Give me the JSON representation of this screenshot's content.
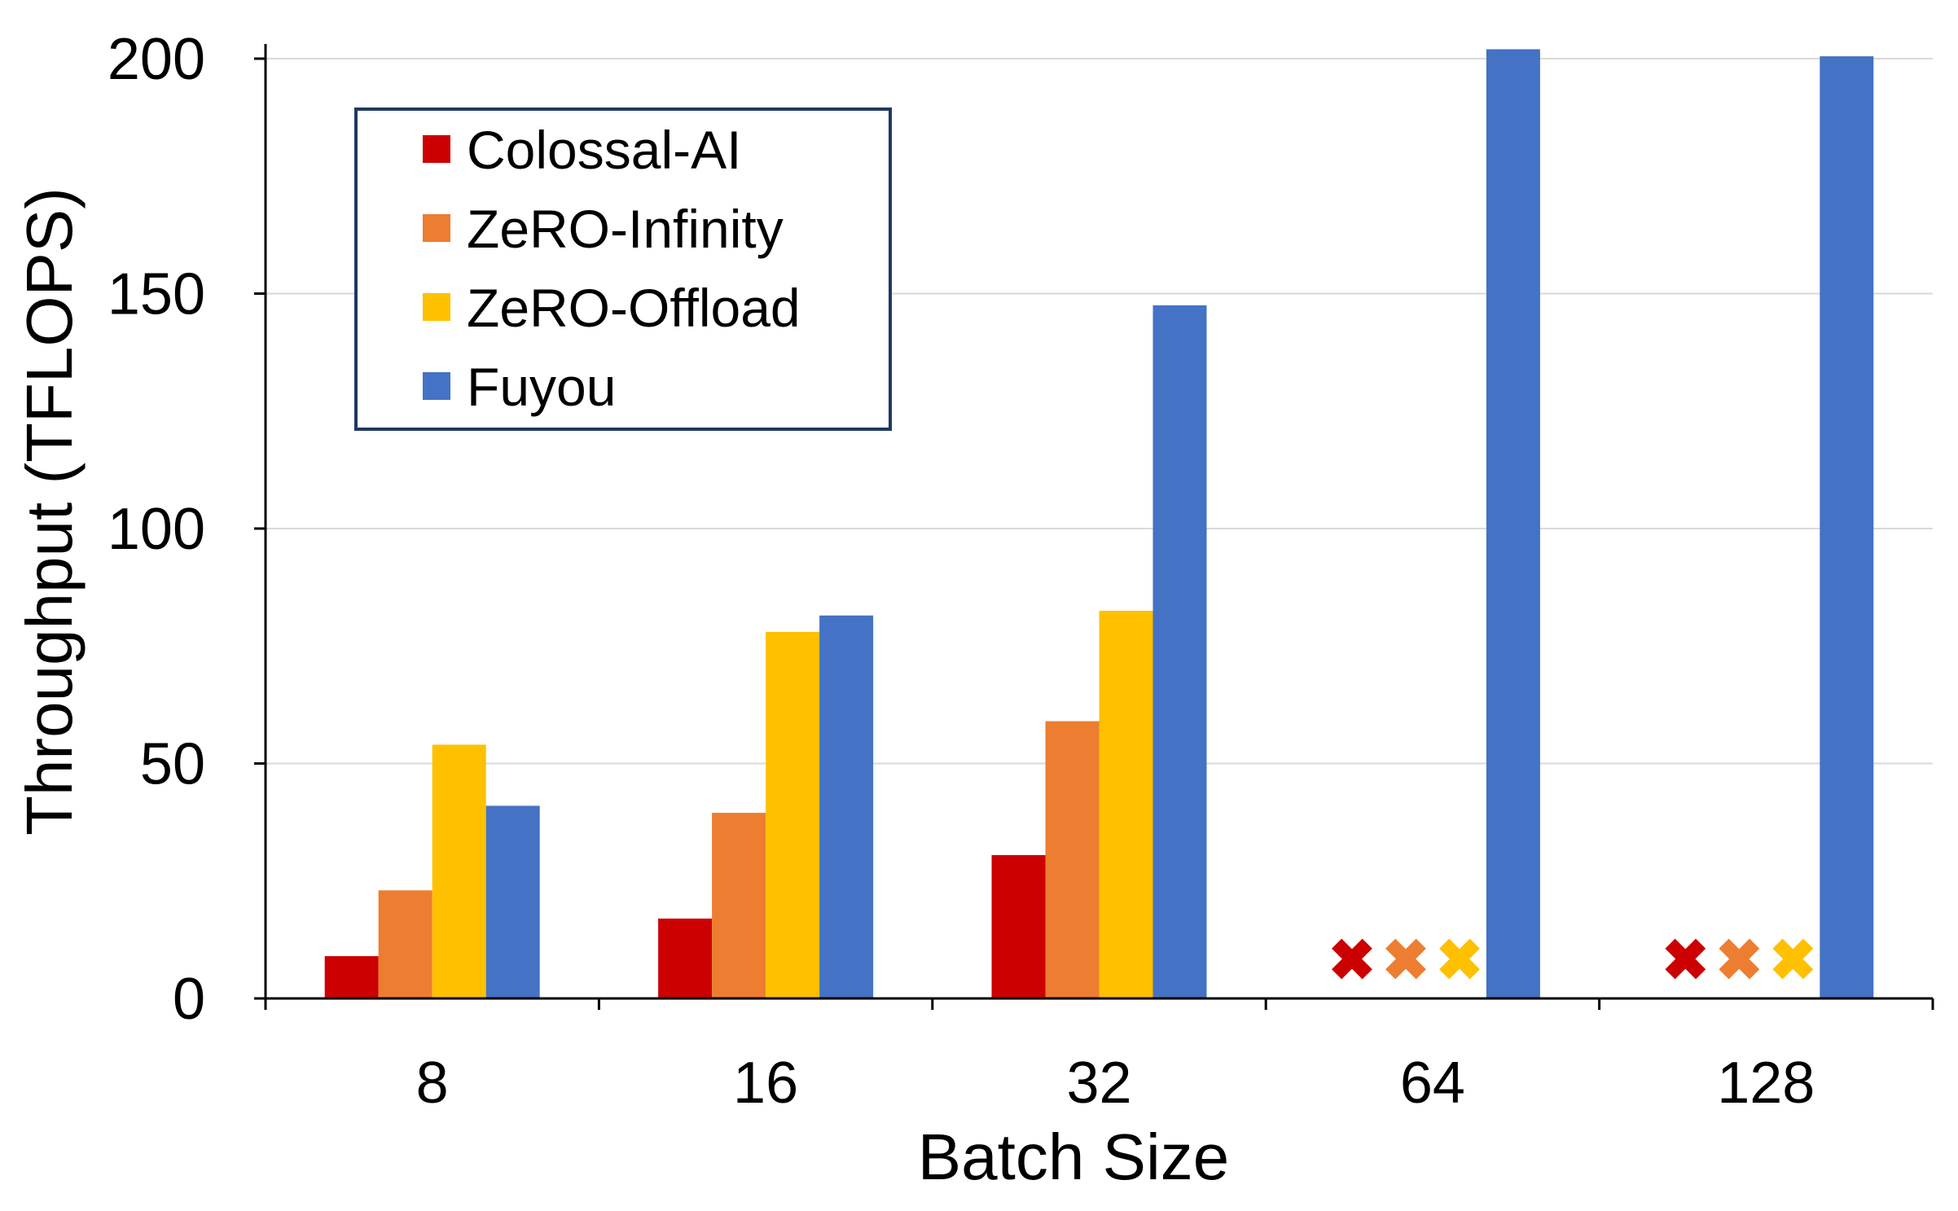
{
  "chart_data": {
    "type": "bar",
    "xlabel": "Batch Size",
    "ylabel": "Throughput (TFLOPS)",
    "categories": [
      "8",
      "16",
      "32",
      "64",
      "128"
    ],
    "ylim": [
      0,
      200
    ],
    "yticks": [
      "0",
      "50",
      "100",
      "150",
      "200"
    ],
    "grid": "horizontal",
    "legend_position": "top-left",
    "series": [
      {
        "name": "Colossal-AI",
        "color": "#CC0000",
        "values": [
          9,
          17,
          30.5,
          null,
          null
        ]
      },
      {
        "name": "ZeRO-Infinity",
        "color": "#ED7D31",
        "values": [
          23,
          39.5,
          59,
          null,
          null
        ]
      },
      {
        "name": "ZeRO-Offload",
        "color": "#FFC000",
        "values": [
          54,
          78,
          82.5,
          null,
          null
        ]
      },
      {
        "name": "Fuyou",
        "color": "#4472C4",
        "values": [
          41,
          81.5,
          147.5,
          202,
          200.5
        ]
      }
    ],
    "failed_marker": "✖"
  }
}
